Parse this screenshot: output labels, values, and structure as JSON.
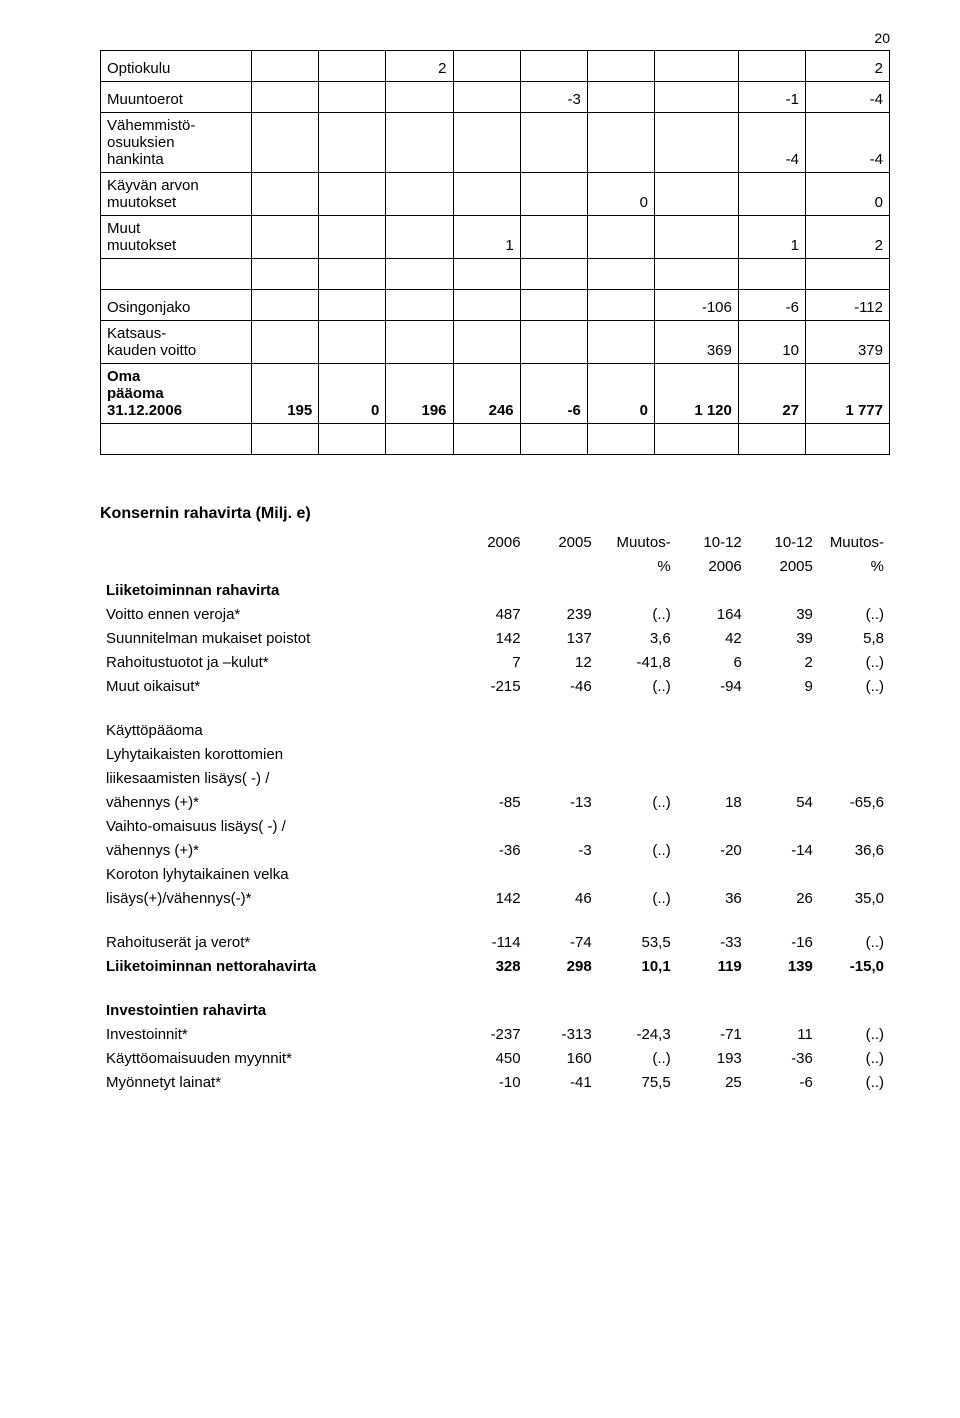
{
  "page_number": "20",
  "table1": {
    "rows": [
      {
        "label": "Optiokulu",
        "c2": "",
        "c3": "",
        "c4": "2",
        "c5": "",
        "c6": "",
        "c7": "",
        "c8": "",
        "c9": "",
        "c10": "2"
      },
      {
        "label": "Muuntoerot",
        "c2": "",
        "c3": "",
        "c4": "",
        "c5": "",
        "c6": "-3",
        "c7": "",
        "c8": "",
        "c9": "-1",
        "c10": "-4"
      },
      {
        "label": "Vähemmistö-\nosuuksien\nhankinta",
        "c2": "",
        "c3": "",
        "c4": "",
        "c5": "",
        "c6": "",
        "c7": "",
        "c8": "",
        "c9": "-4",
        "c10": "-4"
      },
      {
        "label": "Käyvän arvon\nmuutokset",
        "c2": "",
        "c3": "",
        "c4": "",
        "c5": "",
        "c6": "",
        "c7": "0",
        "c8": "",
        "c9": "",
        "c10": "0"
      },
      {
        "label": "Muut\nmuutokset",
        "c2": "",
        "c3": "",
        "c4": "",
        "c5": "1",
        "c6": "",
        "c7": "",
        "c8": "",
        "c9": "1",
        "c10": "2"
      },
      {
        "label": "",
        "c2": "",
        "c3": "",
        "c4": "",
        "c5": "",
        "c6": "",
        "c7": "",
        "c8": "",
        "c9": "",
        "c10": ""
      },
      {
        "label": "Osingonjako",
        "c2": "",
        "c3": "",
        "c4": "",
        "c5": "",
        "c6": "",
        "c7": "",
        "c8": "-106",
        "c9": "-6",
        "c10": "-112"
      },
      {
        "label": "Katsaus-\nkauden voitto",
        "c2": "",
        "c3": "",
        "c4": "",
        "c5": "",
        "c6": "",
        "c7": "",
        "c8": "369",
        "c9": "10",
        "c10": "379"
      },
      {
        "label": "Oma\npääoma\n31.12.2006",
        "c2": "195",
        "c3": "0",
        "c4": "196",
        "c5": "246",
        "c6": "-6",
        "c7": "0",
        "c8": "1 120",
        "c9": "27",
        "c10": "1 777",
        "bold": true
      },
      {
        "label": "",
        "c2": "",
        "c3": "",
        "c4": "",
        "c5": "",
        "c6": "",
        "c7": "",
        "c8": "",
        "c9": "",
        "c10": ""
      }
    ]
  },
  "cashflow_title": "Konsernin rahavirta (Milj. e)",
  "cashflow_header": {
    "h2a": "2006",
    "h3a": "2005",
    "h4a": "Muutos-",
    "h5a": "10-12",
    "h6a": "10-12",
    "h7a": "Muutos-",
    "h4b": "%",
    "h5b": "2006",
    "h6b": "2005",
    "h7b": "%"
  },
  "cashflow": [
    {
      "label": "Liiketoiminnan rahavirta",
      "bold": true
    },
    {
      "label": "Voitto ennen veroja*",
      "c2": "487",
      "c3": "239",
      "c4": "(..)",
      "c5": "164",
      "c6": "39",
      "c7": "(..)"
    },
    {
      "label": "Suunnitelman mukaiset poistot",
      "c2": "142",
      "c3": "137",
      "c4": "3,6",
      "c5": "42",
      "c6": "39",
      "c7": "5,8"
    },
    {
      "label": "Rahoitustuotot ja –kulut*",
      "c2": "7",
      "c3": "12",
      "c4": "-41,8",
      "c5": "6",
      "c6": "2",
      "c7": "(..)"
    },
    {
      "label": "Muut oikaisut*",
      "c2": "-215",
      "c3": "-46",
      "c4": "(..)",
      "c5": "-94",
      "c6": "9",
      "c7": "(..)"
    },
    {
      "spacer": true
    },
    {
      "label": "Käyttöpääoma"
    },
    {
      "label": "Lyhytaikaisten korottomien"
    },
    {
      "label": "liikesaamisten lisäys( -) /"
    },
    {
      "label": "vähennys (+)*",
      "c2": "-85",
      "c3": "-13",
      "c4": "(..)",
      "c5": "18",
      "c6": "54",
      "c7": "-65,6"
    },
    {
      "label": "Vaihto-omaisuus lisäys( -) /"
    },
    {
      "label": "vähennys (+)*",
      "c2": "-36",
      "c3": "-3",
      "c4": "(..)",
      "c5": "-20",
      "c6": "-14",
      "c7": "36,6"
    },
    {
      "label": "Koroton lyhytaikainen velka"
    },
    {
      "label": "lisäys(+)/vähennys(-)*",
      "c2": "142",
      "c3": "46",
      "c4": "(..)",
      "c5": "36",
      "c6": "26",
      "c7": "35,0"
    },
    {
      "spacer": true
    },
    {
      "label": "Rahoituserät ja verot*",
      "c2": "-114",
      "c3": "-74",
      "c4": "53,5",
      "c5": "-33",
      "c6": "-16",
      "c7": "(..)"
    },
    {
      "label": "Liiketoiminnan nettorahavirta",
      "c2": "328",
      "c3": "298",
      "c4": "10,1",
      "c5": "119",
      "c6": "139",
      "c7": "-15,0",
      "bold": true
    },
    {
      "spacer": true
    },
    {
      "label": "Investointien rahavirta",
      "bold": true
    },
    {
      "label": "Investoinnit*",
      "c2": "-237",
      "c3": "-313",
      "c4": "-24,3",
      "c5": "-71",
      "c6": "11",
      "c7": "(..)"
    },
    {
      "label": "Käyttöomaisuuden myynnit*",
      "c2": "450",
      "c3": "160",
      "c4": "(..)",
      "c5": "193",
      "c6": "-36",
      "c7": "(..)"
    },
    {
      "label": "Myönnetyt lainat*",
      "c2": "-10",
      "c3": "-41",
      "c4": "75,5",
      "c5": "25",
      "c6": "-6",
      "c7": "(..)"
    }
  ]
}
